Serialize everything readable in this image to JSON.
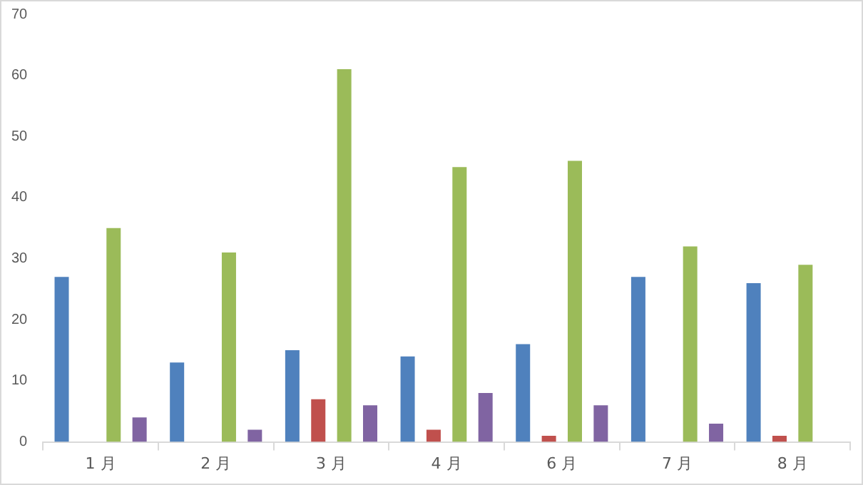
{
  "chart_data": {
    "type": "bar",
    "categories": [
      "1 月",
      "2 月",
      "3 月",
      "4 月",
      "6 月",
      "7 月",
      "8 月"
    ],
    "series": [
      {
        "color": "#4f81bd",
        "values": [
          27,
          13,
          15,
          14,
          16,
          27,
          26
        ]
      },
      {
        "color": "#c0504d",
        "values": [
          null,
          null,
          7,
          2,
          1,
          null,
          1
        ]
      },
      {
        "color": "#9bbb59",
        "values": [
          35,
          31,
          61,
          45,
          46,
          32,
          29
        ]
      },
      {
        "color": "#8064a2",
        "values": [
          4,
          2,
          6,
          8,
          6,
          3,
          null
        ]
      }
    ],
    "ylim": [
      0,
      70
    ],
    "yticks": [
      0,
      10,
      20,
      30,
      40,
      50,
      60,
      70
    ],
    "grid": false,
    "legend": false
  }
}
